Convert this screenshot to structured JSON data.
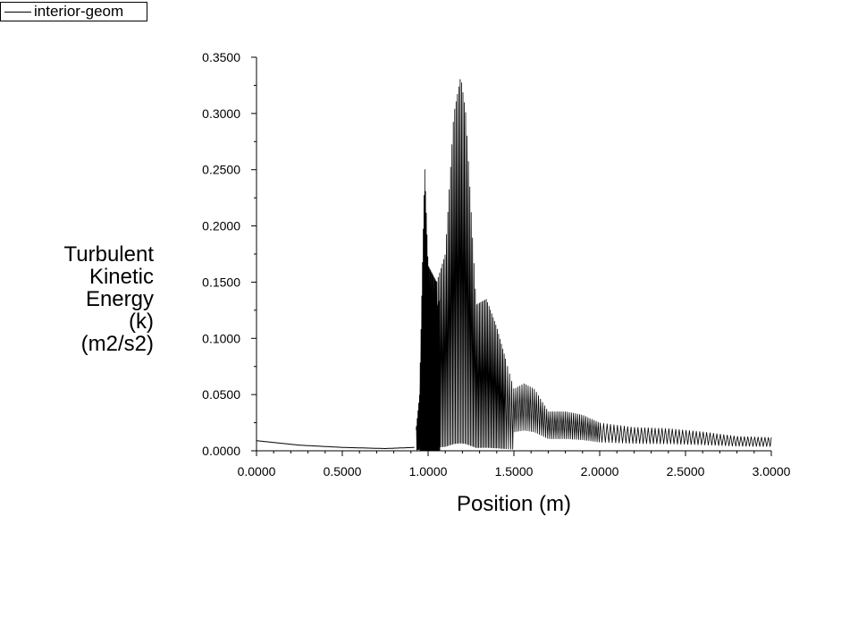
{
  "chart_data": {
    "type": "line",
    "legend": {
      "position": "top-left",
      "entries": [
        "interior-geom"
      ]
    },
    "series": [
      {
        "name": "interior-geom",
        "style": "dense-oscillating",
        "envelope_x": [
          0.0,
          0.25,
          0.5,
          0.75,
          0.92,
          0.95,
          0.98,
          1.0,
          1.05,
          1.1,
          1.15,
          1.19,
          1.22,
          1.28,
          1.34,
          1.4,
          1.5,
          1.56,
          1.62,
          1.7,
          1.8,
          1.9,
          2.0,
          2.2,
          2.4,
          2.6,
          2.8,
          3.0
        ],
        "envelope_y": [
          0.009,
          0.005,
          0.003,
          0.002,
          0.003,
          0.05,
          0.253,
          0.165,
          0.15,
          0.175,
          0.3,
          0.333,
          0.3,
          0.13,
          0.135,
          0.11,
          0.055,
          0.06,
          0.055,
          0.035,
          0.035,
          0.032,
          0.025,
          0.021,
          0.02,
          0.017,
          0.013,
          0.012
        ]
      }
    ],
    "xlabel": "Position (m)",
    "ylabel": [
      "Turbulent",
      "Kinetic",
      "Energy",
      "(k)",
      "(m2/s2)"
    ],
    "xlim": [
      0.0,
      3.0
    ],
    "ylim": [
      0.0,
      0.35
    ],
    "xticks": [
      "0.0000",
      "0.5000",
      "1.0000",
      "1.5000",
      "2.0000",
      "2.5000",
      "3.0000"
    ],
    "yticks": [
      "0.0000",
      "0.0500",
      "0.1000",
      "0.1500",
      "0.2000",
      "0.2500",
      "0.3000",
      "0.3500"
    ],
    "grid": false,
    "color": "#000000"
  }
}
